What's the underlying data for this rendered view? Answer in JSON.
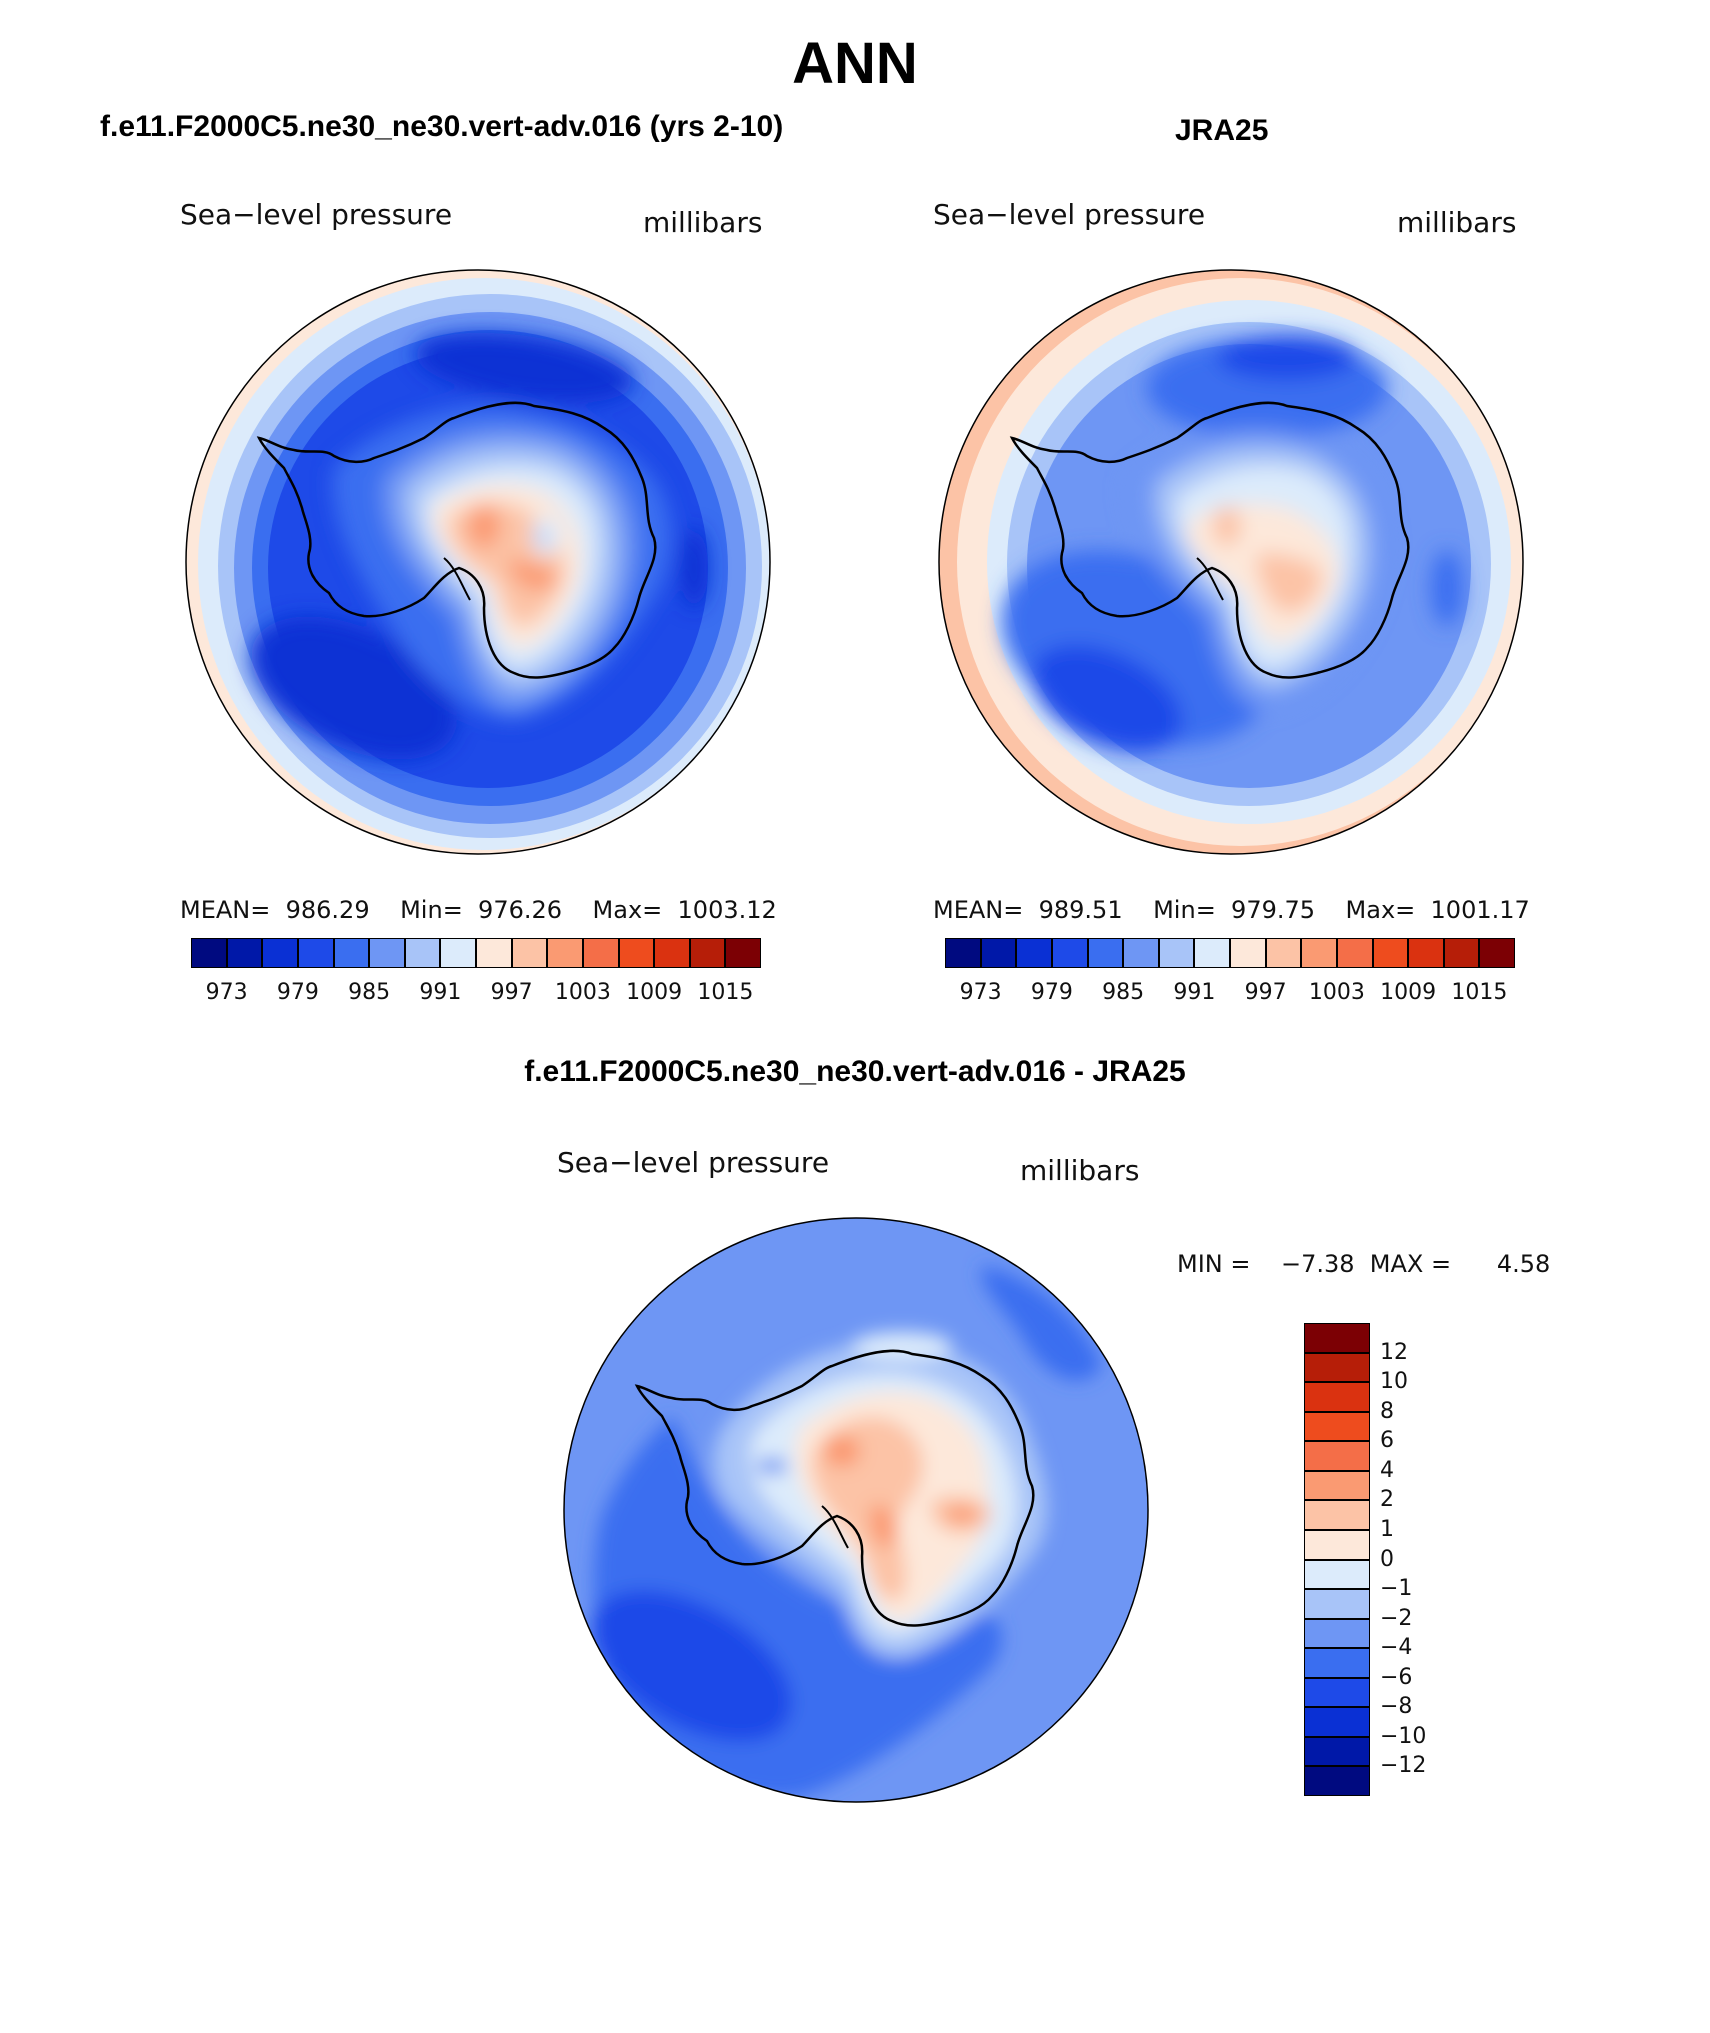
{
  "title": "ANN",
  "panels": [
    {
      "id": "model",
      "title": "f.e11.F2000C5.ne30_ne30.vert-adv.016 (yrs 2-10)",
      "subtitle_left": "Sea−level pressure",
      "subtitle_right": "millibars",
      "stats": "MEAN=  986.29    Min=  976.26    Max=  1003.12"
    },
    {
      "id": "obs",
      "title": "JRA25",
      "subtitle_left": "Sea−level pressure",
      "subtitle_right": "millibars",
      "stats": "MEAN=  989.51    Min=  979.75    Max=  1001.17"
    },
    {
      "id": "diff",
      "title": "f.e11.F2000C5.ne30_ne30.vert-adv.016 - JRA25",
      "subtitle_left": "Sea−level pressure",
      "subtitle_right": "millibars",
      "stats": "MIN =    −7.38  MAX =      4.58"
    }
  ],
  "colorbar_abs": {
    "colors": [
      "#000a80",
      "#0018a8",
      "#0a30d4",
      "#1e4ae8",
      "#3a6ef0",
      "#6e96f4",
      "#a8c4f8",
      "#dcebfb",
      "#fde8da",
      "#fcc3a6",
      "#fa9a72",
      "#f46e48",
      "#ee4c1e",
      "#da3210",
      "#b61e08",
      "#7c0004"
    ],
    "labels": [
      "973",
      "979",
      "985",
      "991",
      "997",
      "1003",
      "1009",
      "1015"
    ]
  },
  "colorbar_diff": {
    "colors": [
      "#000a80",
      "#0018a8",
      "#0a30d4",
      "#1e4ae8",
      "#3a6ef0",
      "#6e96f4",
      "#a8c4f8",
      "#dcebfb",
      "#fde8da",
      "#fcc3a6",
      "#fa9a72",
      "#f46e48",
      "#ee4c1e",
      "#da3210",
      "#b61e08",
      "#7c0004"
    ],
    "labels": [
      "12",
      "10",
      "8",
      "6",
      "4",
      "2",
      "1",
      "0",
      "−1",
      "−2",
      "−4",
      "−6",
      "−8",
      "−10",
      "−12"
    ]
  }
}
